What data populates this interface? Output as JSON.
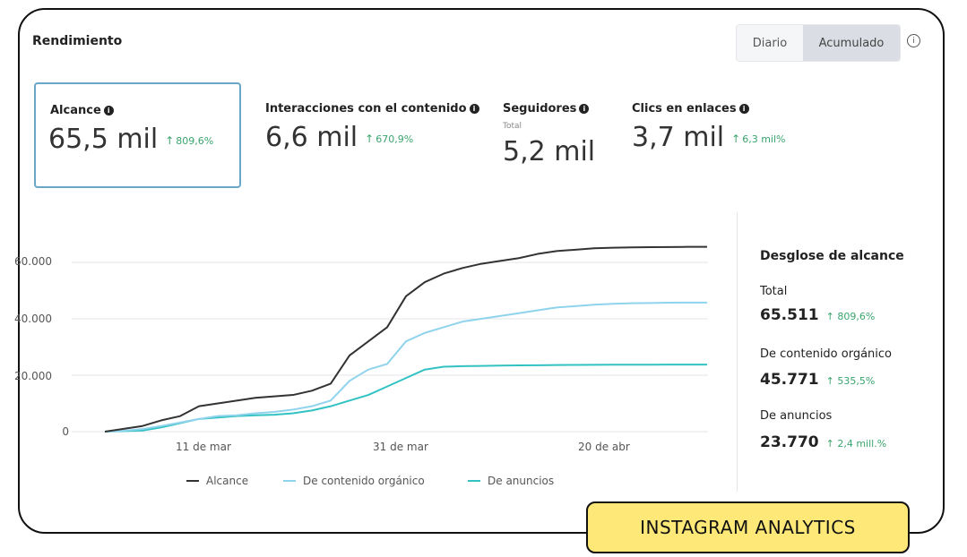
{
  "header": {
    "title": "Rendimiento",
    "toggle": [
      "Diario",
      "Acumulado"
    ],
    "selected": "Acumulado",
    "info_icon": "info-circle-icon"
  },
  "metrics": [
    {
      "label": "Alcance",
      "value": "65,5 mil",
      "change": "809,6%",
      "selected": true
    },
    {
      "label": "Interacciones con el contenido",
      "value": "6,6 mil",
      "change": "670,9%"
    },
    {
      "label": "Seguidores",
      "sublabel": "Total",
      "value": "5,2 mil"
    },
    {
      "label": "Clics en enlaces",
      "value": "3,7 mil",
      "change": "6,3 mil%"
    }
  ],
  "chart_data": {
    "type": "line",
    "y_ticks": [
      "60.000",
      "40.000",
      "20.000",
      "0"
    ],
    "x_ticks": [
      "11 de mar",
      "31 de mar",
      "20 de abr"
    ],
    "ylim": [
      0,
      65000
    ],
    "grid": true,
    "legend_position": "bottom",
    "x": [
      0,
      2,
      4,
      6,
      8,
      10,
      12,
      14,
      16,
      18,
      20,
      22,
      24,
      26,
      28,
      30,
      32,
      34,
      36,
      38,
      40,
      42,
      44,
      46,
      48,
      50,
      52,
      54,
      56,
      58,
      60,
      62,
      64
    ],
    "series": [
      {
        "name": "Alcance",
        "color": "#333333",
        "values": [
          0,
          1000,
          2000,
          4000,
          5500,
          9000,
          10000,
          11000,
          12000,
          12500,
          13000,
          14500,
          17000,
          27000,
          32000,
          37000,
          48000,
          53000,
          56000,
          58000,
          59500,
          60500,
          61500,
          63000,
          64000,
          64500,
          65000,
          65200,
          65300,
          65400,
          65450,
          65500,
          65511
        ]
      },
      {
        "name": "De contenido orgánico",
        "color": "#8fd3ec",
        "values": [
          0,
          300,
          900,
          2000,
          3200,
          4500,
          5500,
          5800,
          6500,
          7000,
          7800,
          9000,
          11000,
          18000,
          22000,
          24000,
          32000,
          35000,
          37000,
          39000,
          40000,
          41000,
          42000,
          43000,
          44000,
          44500,
          45000,
          45300,
          45500,
          45600,
          45700,
          45750,
          45771
        ]
      },
      {
        "name": "De anuncios",
        "color": "#33c2c4",
        "values": [
          0,
          200,
          400,
          1500,
          3000,
          4500,
          5000,
          5500,
          5800,
          6000,
          6500,
          7500,
          9000,
          11000,
          13000,
          16000,
          19000,
          22000,
          23000,
          23200,
          23300,
          23400,
          23500,
          23550,
          23600,
          23650,
          23700,
          23720,
          23740,
          23750,
          23760,
          23765,
          23770
        ]
      }
    ]
  },
  "breakdown": {
    "title": "Desglose de alcance",
    "items": [
      {
        "label": "Total",
        "value": "65.511",
        "change": "809,6%"
      },
      {
        "label": "De contenido orgánico",
        "value": "45.771",
        "change": "535,5%"
      },
      {
        "label": "De anuncios",
        "value": "23.770",
        "change": "2,4 mill.%"
      }
    ]
  },
  "badge": "INSTAGRAM ANALYTICS"
}
